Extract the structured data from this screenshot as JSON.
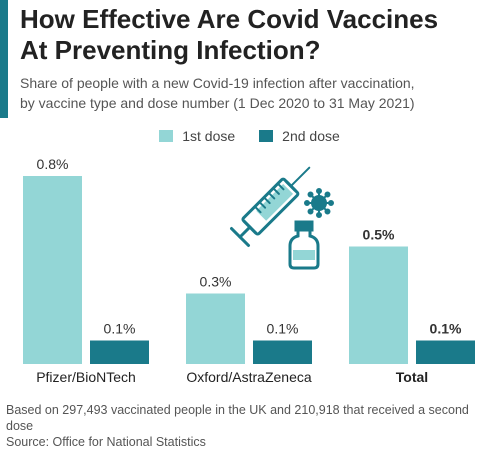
{
  "header": {
    "title_line1": "How Effective Are Covid Vaccines",
    "title_line2": "At Preventing Infection?",
    "subtitle_line1": "Share of people with a new Covid-19 infection after vaccination,",
    "subtitle_line2": "by vaccine type and dose number (1 Dec 2020 to 31 May 2021)"
  },
  "footer": {
    "note": "Based on 297,493 vaccinated people in the UK and 210,918 that received a second dose",
    "source": "Source: Office for National Statistics"
  },
  "colors": {
    "accent": "#1a7a8a",
    "dose1": "#93d6d6",
    "dose2": "#1a7a8a"
  },
  "illustration": {
    "icons": [
      "syringe-icon",
      "virus-icon",
      "vaccine-vial-icon"
    ]
  },
  "chart_data": {
    "type": "bar",
    "categories": [
      "Pfizer/BioNTech",
      "Oxford/AstraZeneca",
      "Total"
    ],
    "series": [
      {
        "name": "1st dose",
        "values": [
          0.8,
          0.3,
          0.5
        ],
        "labels": [
          "0.8%",
          "0.3%",
          "0.5%"
        ]
      },
      {
        "name": "2nd dose",
        "values": [
          0.1,
          0.1,
          0.1
        ],
        "labels": [
          "0.1%",
          "0.1%",
          "0.1%"
        ]
      }
    ],
    "bold_categories": [
      "Total"
    ],
    "ylim": [
      0,
      0.8
    ],
    "grid": false,
    "legend_position": "top-center"
  }
}
